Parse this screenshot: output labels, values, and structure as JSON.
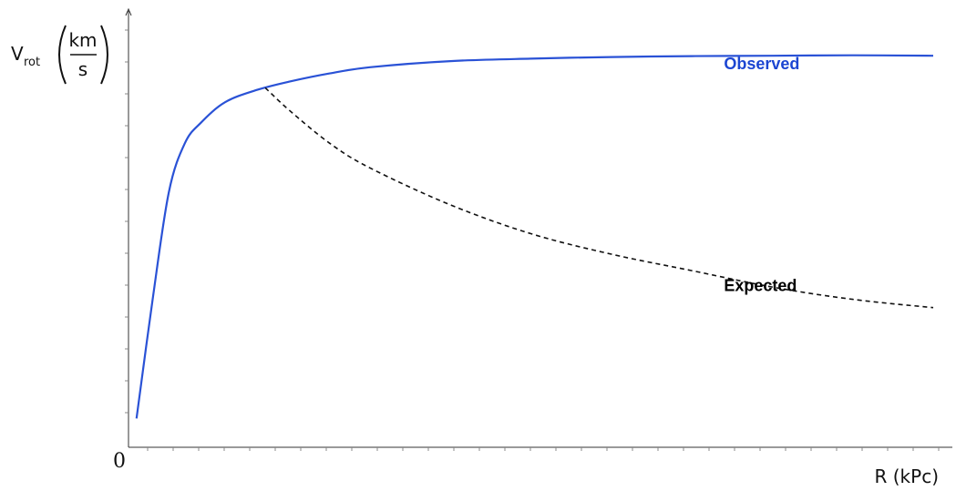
{
  "chart_data": {
    "type": "line",
    "title": "",
    "xlabel": "R (kPc)",
    "ylabel": {
      "symbol": "V",
      "subscript": "rot",
      "unit_numerator": "km",
      "unit_denominator": "s"
    },
    "origin_label": "0",
    "xlim": [
      0,
      10
    ],
    "ylim": [
      0,
      1
    ],
    "grid": false,
    "legend": "none",
    "series": [
      {
        "name": "Observed",
        "color": "#2a52d6",
        "style": "solid",
        "x": [
          0.1,
          0.3,
          0.5,
          0.7,
          0.9,
          1.2,
          1.6,
          2.0,
          2.5,
          3.0,
          4.0,
          5.0,
          6.0,
          7.0,
          8.0,
          9.0,
          10.0
        ],
        "y": [
          0.07,
          0.36,
          0.62,
          0.74,
          0.79,
          0.84,
          0.87,
          0.89,
          0.91,
          0.925,
          0.94,
          0.946,
          0.95,
          0.952,
          0.953,
          0.954,
          0.953
        ]
      },
      {
        "name": "Expected",
        "color": "#111111",
        "style": "dashed",
        "x": [
          1.7,
          2.0,
          2.5,
          3.0,
          4.0,
          5.0,
          6.0,
          7.0,
          8.0,
          9.0,
          10.0
        ],
        "y": [
          0.875,
          0.82,
          0.74,
          0.68,
          0.59,
          0.52,
          0.47,
          0.43,
          0.39,
          0.36,
          0.34
        ]
      }
    ],
    "annotations": [
      {
        "text": "Observed",
        "color": "#1c46d2",
        "x": 7.4,
        "y": 0.92
      },
      {
        "text": "Expected",
        "color": "#000000",
        "x": 7.4,
        "y": 0.38
      }
    ]
  }
}
